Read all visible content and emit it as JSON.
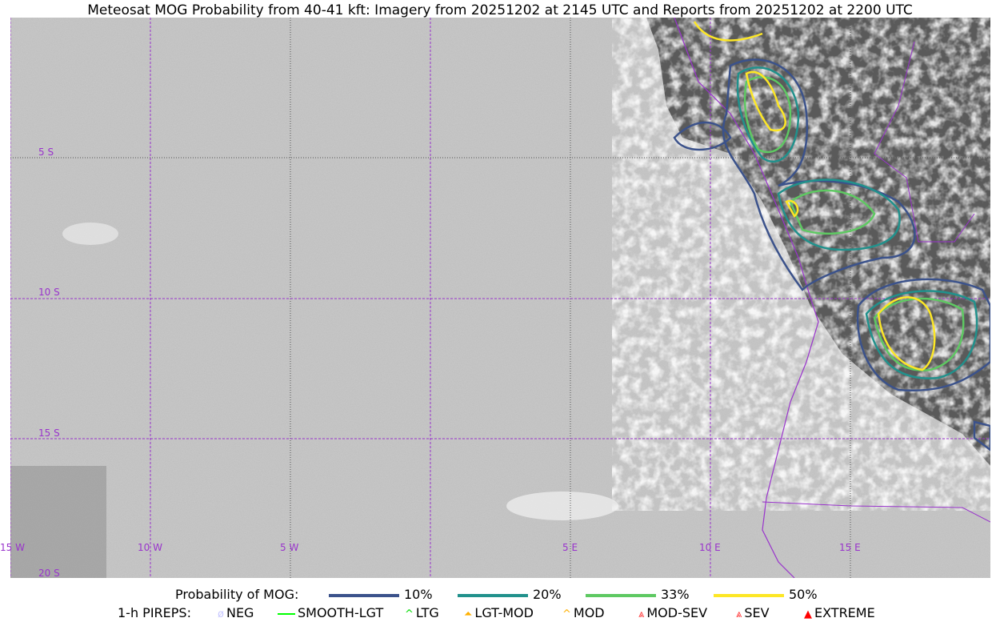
{
  "title": "Meteosat MOG Probability from 40-41 kft: Imagery from 20251202 at 2145 UTC and Reports from 20251202 at 2200 UTC",
  "map": {
    "lat_labels": [
      "5 S",
      "10 S",
      "15 S",
      "20 S"
    ],
    "lon_labels": [
      "15 W",
      "10 W",
      "5 W",
      "5 E",
      "10 E",
      "15 E"
    ],
    "grid_color": "#9933cc",
    "boundary_color": "#9933cc"
  },
  "legend": {
    "probability_title": "Probability of MOG:",
    "probability_levels": [
      {
        "label": "10%",
        "color": "#3b528b"
      },
      {
        "label": "20%",
        "color": "#21918c"
      },
      {
        "label": "33%",
        "color": "#5ec962"
      },
      {
        "label": "50%",
        "color": "#fde725"
      }
    ],
    "pireps_title": "1-h PIREPS:",
    "pireps": [
      {
        "label": "NEG",
        "icon": "neg-circle-icon",
        "color": "#c8c8ff"
      },
      {
        "label": "SMOOTH-LGT",
        "icon": "line-icon",
        "color": "#00ff00"
      },
      {
        "label": "LTG",
        "icon": "caret-icon",
        "color": "#00dd00"
      },
      {
        "label": "LGT-MOD",
        "icon": "lgt-mod-icon",
        "color": "#ffb000"
      },
      {
        "label": "MOD",
        "icon": "caret-icon",
        "color": "#ffb000"
      },
      {
        "label": "MOD-SEV",
        "icon": "mod-sev-icon",
        "color": "#ff3030"
      },
      {
        "label": "SEV",
        "icon": "sev-icon",
        "color": "#ff3030"
      },
      {
        "label": "EXTREME",
        "icon": "extreme-icon",
        "color": "#ff0000"
      }
    ]
  }
}
